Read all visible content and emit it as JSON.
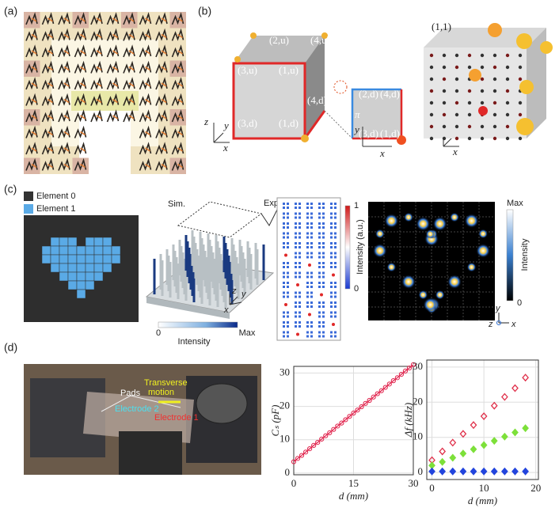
{
  "panel_labels": [
    "(a)",
    "(b)",
    "(c)",
    "(d)"
  ],
  "b": {
    "cube_labels": [
      "(2,u)",
      "(4,u)",
      "(3,u)",
      "(1,u)",
      "(4,d)",
      "(3,d)",
      "(1,d)"
    ],
    "square_labels": [
      "(2,d)",
      "(4,d)",
      "(3,d)",
      "(1,d)"
    ],
    "pi": "π",
    "axes_cube": [
      "z",
      "y",
      "x"
    ],
    "axes_square": [
      "y",
      "x"
    ],
    "axes_lattice": [
      "z",
      "y",
      "x"
    ],
    "lattice_label": "(1,1)"
  },
  "c": {
    "legend": [
      "Element 0",
      "Element 1"
    ],
    "sim": "Sim.",
    "exp": "Exp.",
    "sim_bar": {
      "min": "0",
      "title": "Intensity",
      "max": "Max"
    },
    "exp_bar": {
      "max": "1",
      "title": "Intensity (a.u.)",
      "min": "0"
    },
    "far_bar": {
      "max": "Max",
      "title": "Intensity",
      "min": "0"
    },
    "axes_sim": [
      "x",
      "y",
      "z"
    ],
    "axes_far": [
      "y",
      "z",
      "x"
    ]
  },
  "d": {
    "photo_labels": [
      "Pads",
      "Transverse",
      "motion",
      "Electrode 2",
      "Electrode 1"
    ]
  },
  "chart_data": [
    {
      "type": "line",
      "xlabel": "d (mm)",
      "ylabel": "Cₛ (pF)",
      "x": [
        0,
        1,
        2,
        3,
        4,
        5,
        6,
        7,
        8,
        9,
        10,
        11,
        12,
        13,
        14,
        15,
        16,
        17,
        18,
        19,
        20,
        21,
        22,
        23,
        24,
        25,
        26,
        27,
        28,
        29,
        30
      ],
      "series": [
        {
          "color": "#e0204a",
          "marker": "circle",
          "values": [
            3.4,
            4.4,
            5.3,
            6.3,
            7.3,
            8.3,
            9.2,
            10.2,
            11.2,
            12.1,
            13.1,
            14.1,
            15,
            16,
            17,
            18,
            18.9,
            19.9,
            20.9,
            21.8,
            22.8,
            23.8,
            24.7,
            25.7,
            26.7,
            27.7,
            28.6,
            29.6,
            30.6,
            31.5,
            32.5
          ]
        }
      ],
      "xlim": [
        0,
        30
      ],
      "ylim": [
        -0.5,
        32
      ],
      "xticks": [
        0,
        15,
        30
      ],
      "yticks": [
        0,
        10,
        20,
        30
      ],
      "grid": true
    },
    {
      "type": "scatter",
      "xlabel": "d (mm)",
      "ylabel": "Δf (kHz)",
      "x": [
        0,
        2,
        4,
        6,
        8,
        10,
        12,
        14,
        16,
        18
      ],
      "series": [
        {
          "color": "#e0304a",
          "marker": "diamond-open",
          "values": [
            3.5,
            6,
            8.5,
            11,
            13.5,
            16,
            19,
            21.5,
            24,
            27
          ]
        },
        {
          "color": "#7de03a",
          "marker": "diamond",
          "values": [
            2,
            3,
            4.2,
            5.4,
            6.6,
            7.8,
            9,
            10.2,
            11.4,
            12.6
          ]
        },
        {
          "color": "#2244dd",
          "marker": "diamond",
          "values": [
            0.3,
            0.3,
            0.3,
            0.3,
            0.3,
            0.3,
            0.3,
            0.3,
            0.3,
            0.3
          ]
        }
      ],
      "xlim": [
        -1,
        20.5
      ],
      "ylim": [
        -2,
        32
      ],
      "xticks": [
        0,
        10,
        20
      ],
      "yticks": [
        0,
        10,
        20,
        30
      ],
      "grid": true
    }
  ]
}
